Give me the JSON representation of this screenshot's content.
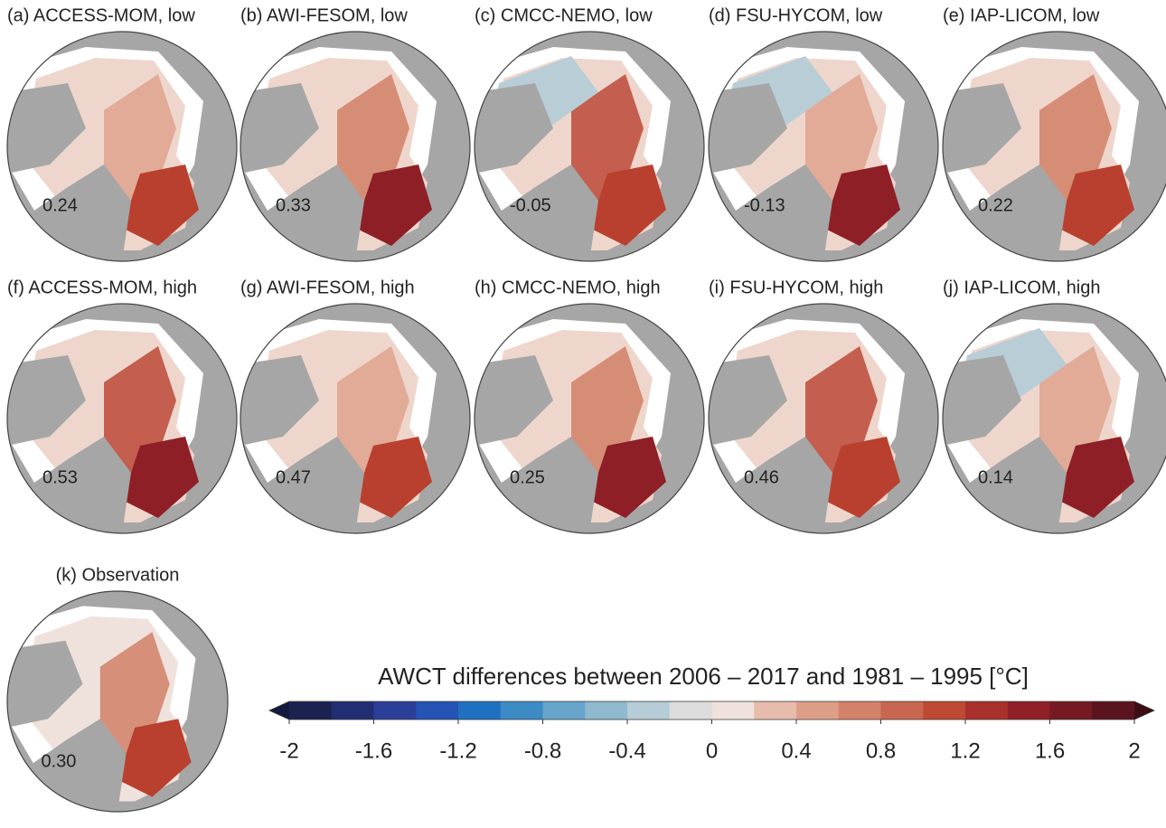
{
  "panels": [
    {
      "title": "(a) ACCESS-MOM, low",
      "value": "0.24"
    },
    {
      "title": "(b) AWI-FESOM, low",
      "value": "0.33"
    },
    {
      "title": "(c) CMCC-NEMO, low",
      "value": "-0.05"
    },
    {
      "title": "(d) FSU-HYCOM, low",
      "value": "-0.13"
    },
    {
      "title": "(e) IAP-LICOM, low",
      "value": "0.22"
    },
    {
      "title": "(f) ACCESS-MOM, high",
      "value": "0.53"
    },
    {
      "title": "(g) AWI-FESOM, high",
      "value": "0.47"
    },
    {
      "title": "(h) CMCC-NEMO, high",
      "value": "0.25"
    },
    {
      "title": "(i) FSU-HYCOM, high",
      "value": "0.46"
    },
    {
      "title": "(j) IAP-LICOM, high",
      "value": "0.14"
    },
    {
      "title": "(k) Observation",
      "value": "0.30"
    }
  ],
  "colorbar": {
    "title": "AWCT differences between 2006 – 2017 and 1981 – 1995 [°C]",
    "lim": [
      -2,
      2
    ],
    "ticks": [
      -2,
      -1.6,
      -1.2,
      -0.8,
      -0.4,
      0,
      0.4,
      0.8,
      1.2,
      1.6,
      2
    ],
    "colors": [
      "#1b2250",
      "#222e72",
      "#2c3f98",
      "#2553b5",
      "#1f70c0",
      "#3d8bc5",
      "#66a4c9",
      "#8fb9ce",
      "#b6ccd7",
      "#dcdcdc",
      "#efe1dc",
      "#e7bcad",
      "#dd9e88",
      "#d4816a",
      "#c96650",
      "#bf4a34",
      "#a9302b",
      "#901f27",
      "#751a23",
      "#5a141e"
    ],
    "under": "#141a3e",
    "over": "#3d0d15"
  }
}
